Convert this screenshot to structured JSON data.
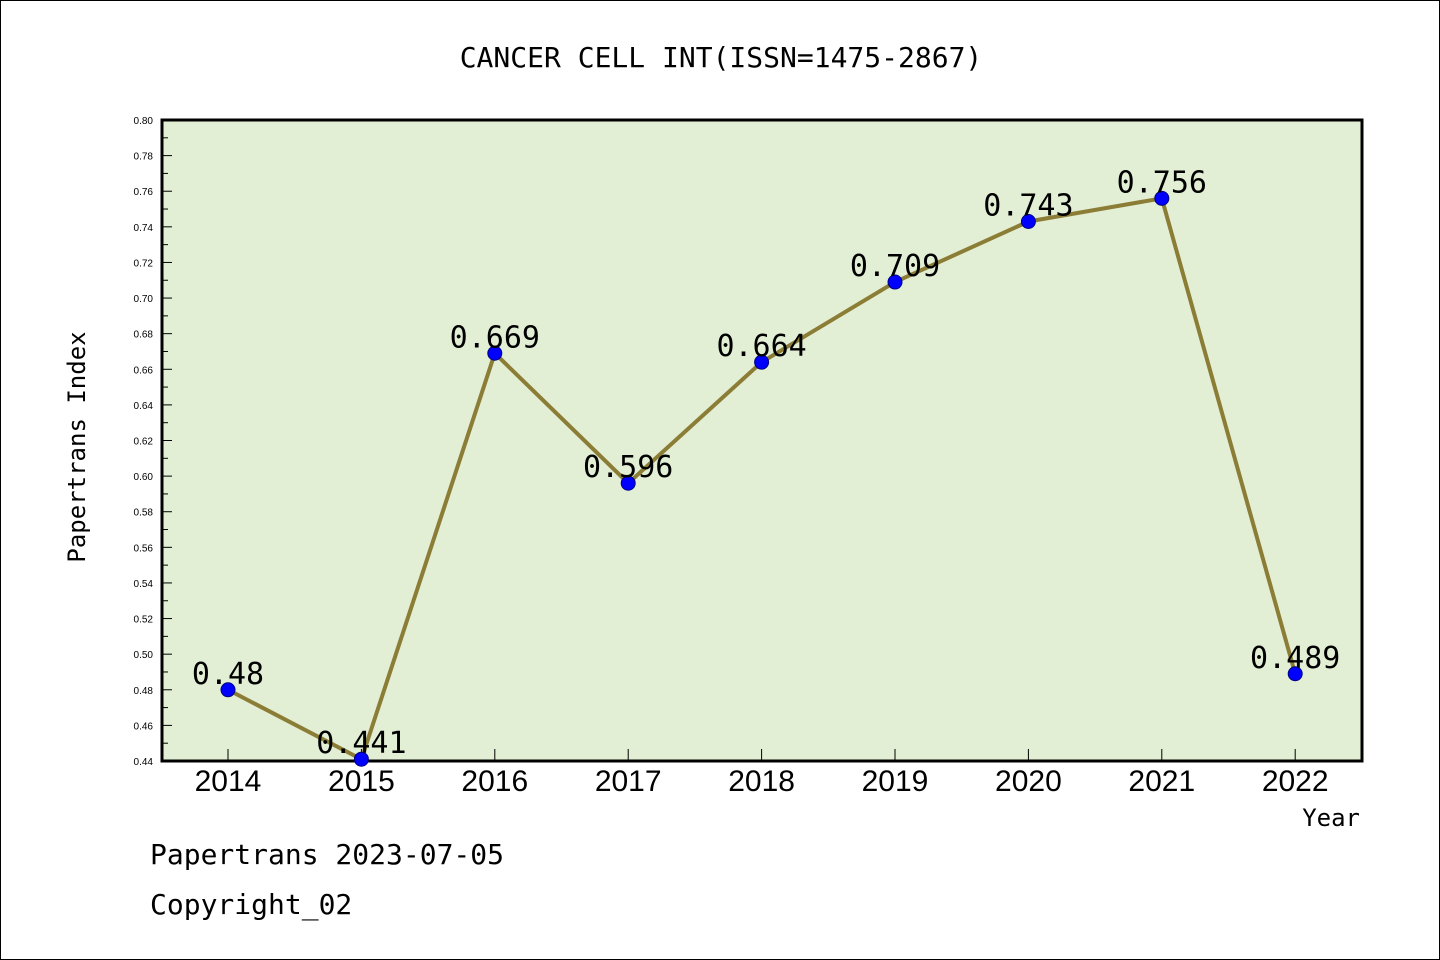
{
  "chart_data": {
    "type": "line",
    "title": "CANCER CELL INT(ISSN=1475-2867)",
    "xlabel": "Year",
    "ylabel": "Papertrans Index",
    "x": [
      "2014",
      "2015",
      "2016",
      "2017",
      "2018",
      "2019",
      "2020",
      "2021",
      "2022"
    ],
    "values": [
      0.48,
      0.441,
      0.669,
      0.596,
      0.664,
      0.709,
      0.743,
      0.756,
      0.489
    ],
    "data_labels": [
      "0.48",
      "0.441",
      "0.669",
      "0.596",
      "0.664",
      "0.709",
      "0.743",
      "0.756",
      "0.489"
    ],
    "ylim": [
      0.44,
      0.8
    ],
    "yticks": [
      "0.44",
      "0.46",
      "0.48",
      "0.50",
      "0.52",
      "0.54",
      "0.56",
      "0.58",
      "0.60",
      "0.62",
      "0.64",
      "0.66",
      "0.68",
      "0.70",
      "0.72",
      "0.74",
      "0.76",
      "0.78",
      "0.80"
    ],
    "grid": false,
    "colors": {
      "plot_background": "#e2efd5",
      "line": "#8b7d35",
      "marker": "#0000ff"
    }
  },
  "footer": {
    "line1": "Papertrans 2023-07-05",
    "line2": "Copyright_02"
  }
}
